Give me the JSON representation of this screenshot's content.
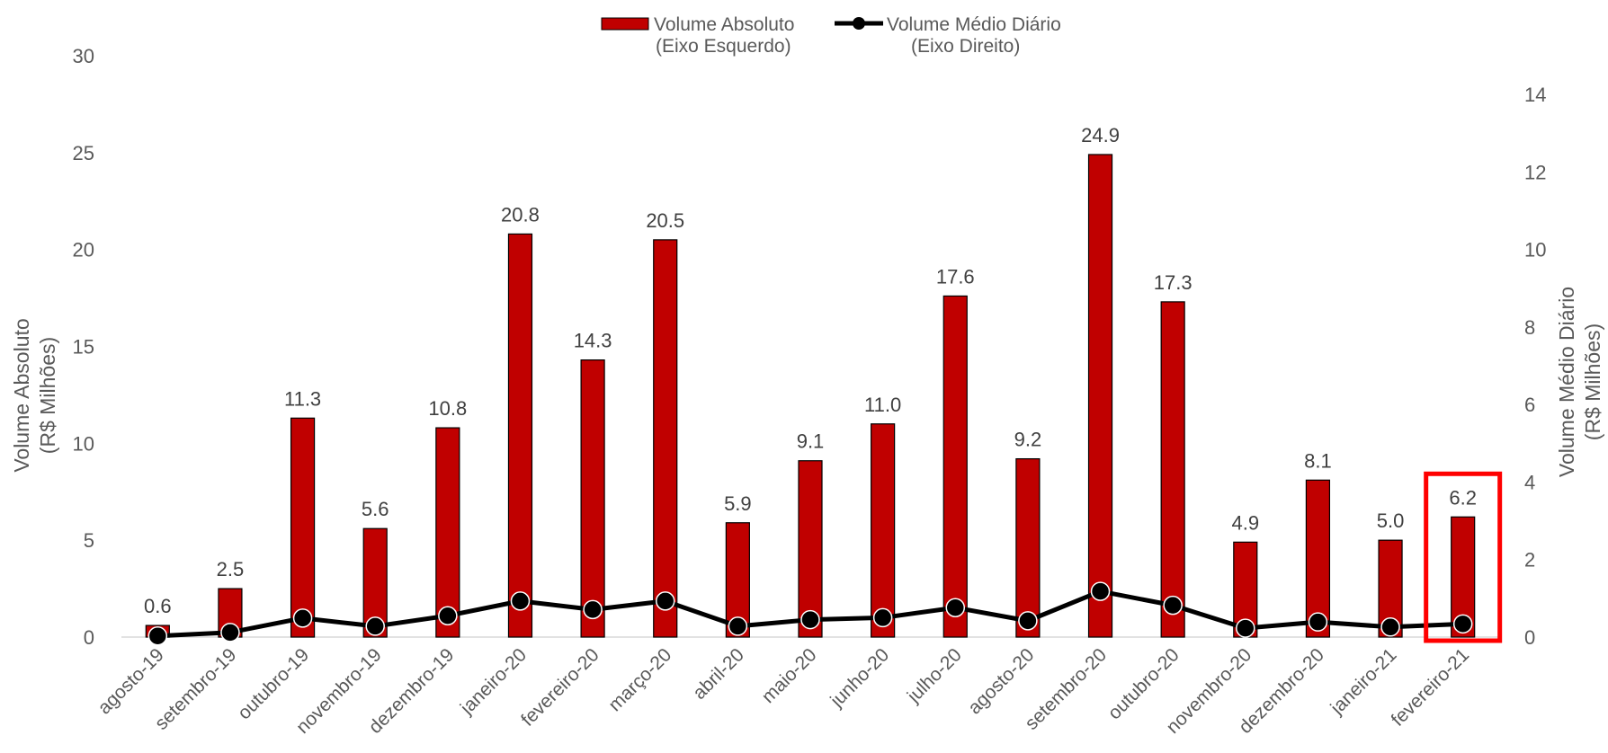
{
  "chart_data": {
    "type": "bar",
    "categories": [
      "agosto-19",
      "setembro-19",
      "outubro-19",
      "novembro-19",
      "dezembro-19",
      "janeiro-20",
      "fevereiro-20",
      "março-20",
      "abril-20",
      "maio-20",
      "junho-20",
      "julho-20",
      "agosto-20",
      "setembro-20",
      "outubro-20",
      "novembro-20",
      "dezembro-20",
      "janeiro-21",
      "fevereiro-21"
    ],
    "series": [
      {
        "name_line1": "Volume Absoluto",
        "name_line2": "(Eixo Esquerdo)",
        "type": "bar",
        "axis": "left",
        "values": [
          0.6,
          2.5,
          11.3,
          5.6,
          10.8,
          20.8,
          14.3,
          20.5,
          5.9,
          9.1,
          11.0,
          17.6,
          9.2,
          24.9,
          17.3,
          4.9,
          8.1,
          5.0,
          6.2
        ],
        "labels": [
          "0.6",
          "2.5",
          "11.3",
          "5.6",
          "10.8",
          "20.8",
          "14.3",
          "20.5",
          "5.9",
          "9.1",
          "11.0",
          "17.6",
          "9.2",
          "24.9",
          "17.3",
          "4.9",
          "8.1",
          "5.0",
          "6.2"
        ],
        "color": "#c00000"
      },
      {
        "name_line1": "Volume Médio Diário",
        "name_line2": "(Eixo Direito)",
        "type": "line",
        "axis": "right",
        "values": [
          0.03,
          0.12,
          0.49,
          0.28,
          0.55,
          0.93,
          0.71,
          0.93,
          0.28,
          0.45,
          0.5,
          0.76,
          0.42,
          1.18,
          0.82,
          0.23,
          0.39,
          0.26,
          0.34
        ],
        "color": "#000000"
      }
    ],
    "left_axis": {
      "title_line1": "Volume Absoluto",
      "title_line2": "(R$ Milhões)",
      "ylim": [
        0,
        30
      ],
      "ticks": [
        "0",
        "5",
        "10",
        "15",
        "20",
        "25",
        "30"
      ]
    },
    "right_axis": {
      "title_line1": "Volume Médio Diário",
      "title_line2": "(R$ Milhões)",
      "ylim": [
        0,
        14
      ],
      "ticks": [
        "0",
        "2",
        "4",
        "6",
        "8",
        "10",
        "12",
        "14"
      ]
    },
    "grid": false,
    "legend_position": "top-center",
    "highlight_category": "fevereiro-21",
    "highlight_color": "#ff0000"
  }
}
